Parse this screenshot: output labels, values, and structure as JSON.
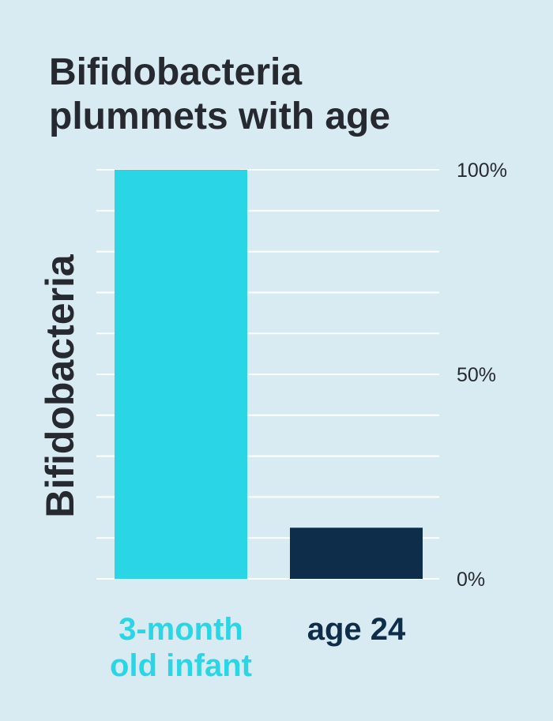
{
  "colors": {
    "background": "#d9ebf2",
    "gridline": "#ffffff",
    "text": "#262a30",
    "series_infant": "#2ad6e6",
    "series_adult": "#0d2d4a"
  },
  "chart_data": {
    "type": "bar",
    "title_lines": [
      "Bifidobacteria",
      "plummets with age"
    ],
    "ylabel": "Bifidobacteria",
    "xlabel": "",
    "categories": [
      {
        "lines": [
          "3-month",
          "old infant"
        ],
        "color": "#2ad6e6"
      },
      {
        "lines": [
          "age 24"
        ],
        "color": "#0d2d4a"
      }
    ],
    "values": [
      100,
      12.5
    ],
    "ylim": [
      0,
      100
    ],
    "yticks": [
      {
        "value": 100,
        "label": "100%"
      },
      {
        "value": 50,
        "label": "50%"
      },
      {
        "value": 0,
        "label": "0%"
      }
    ],
    "gridline_count": 11,
    "grid": true
  }
}
